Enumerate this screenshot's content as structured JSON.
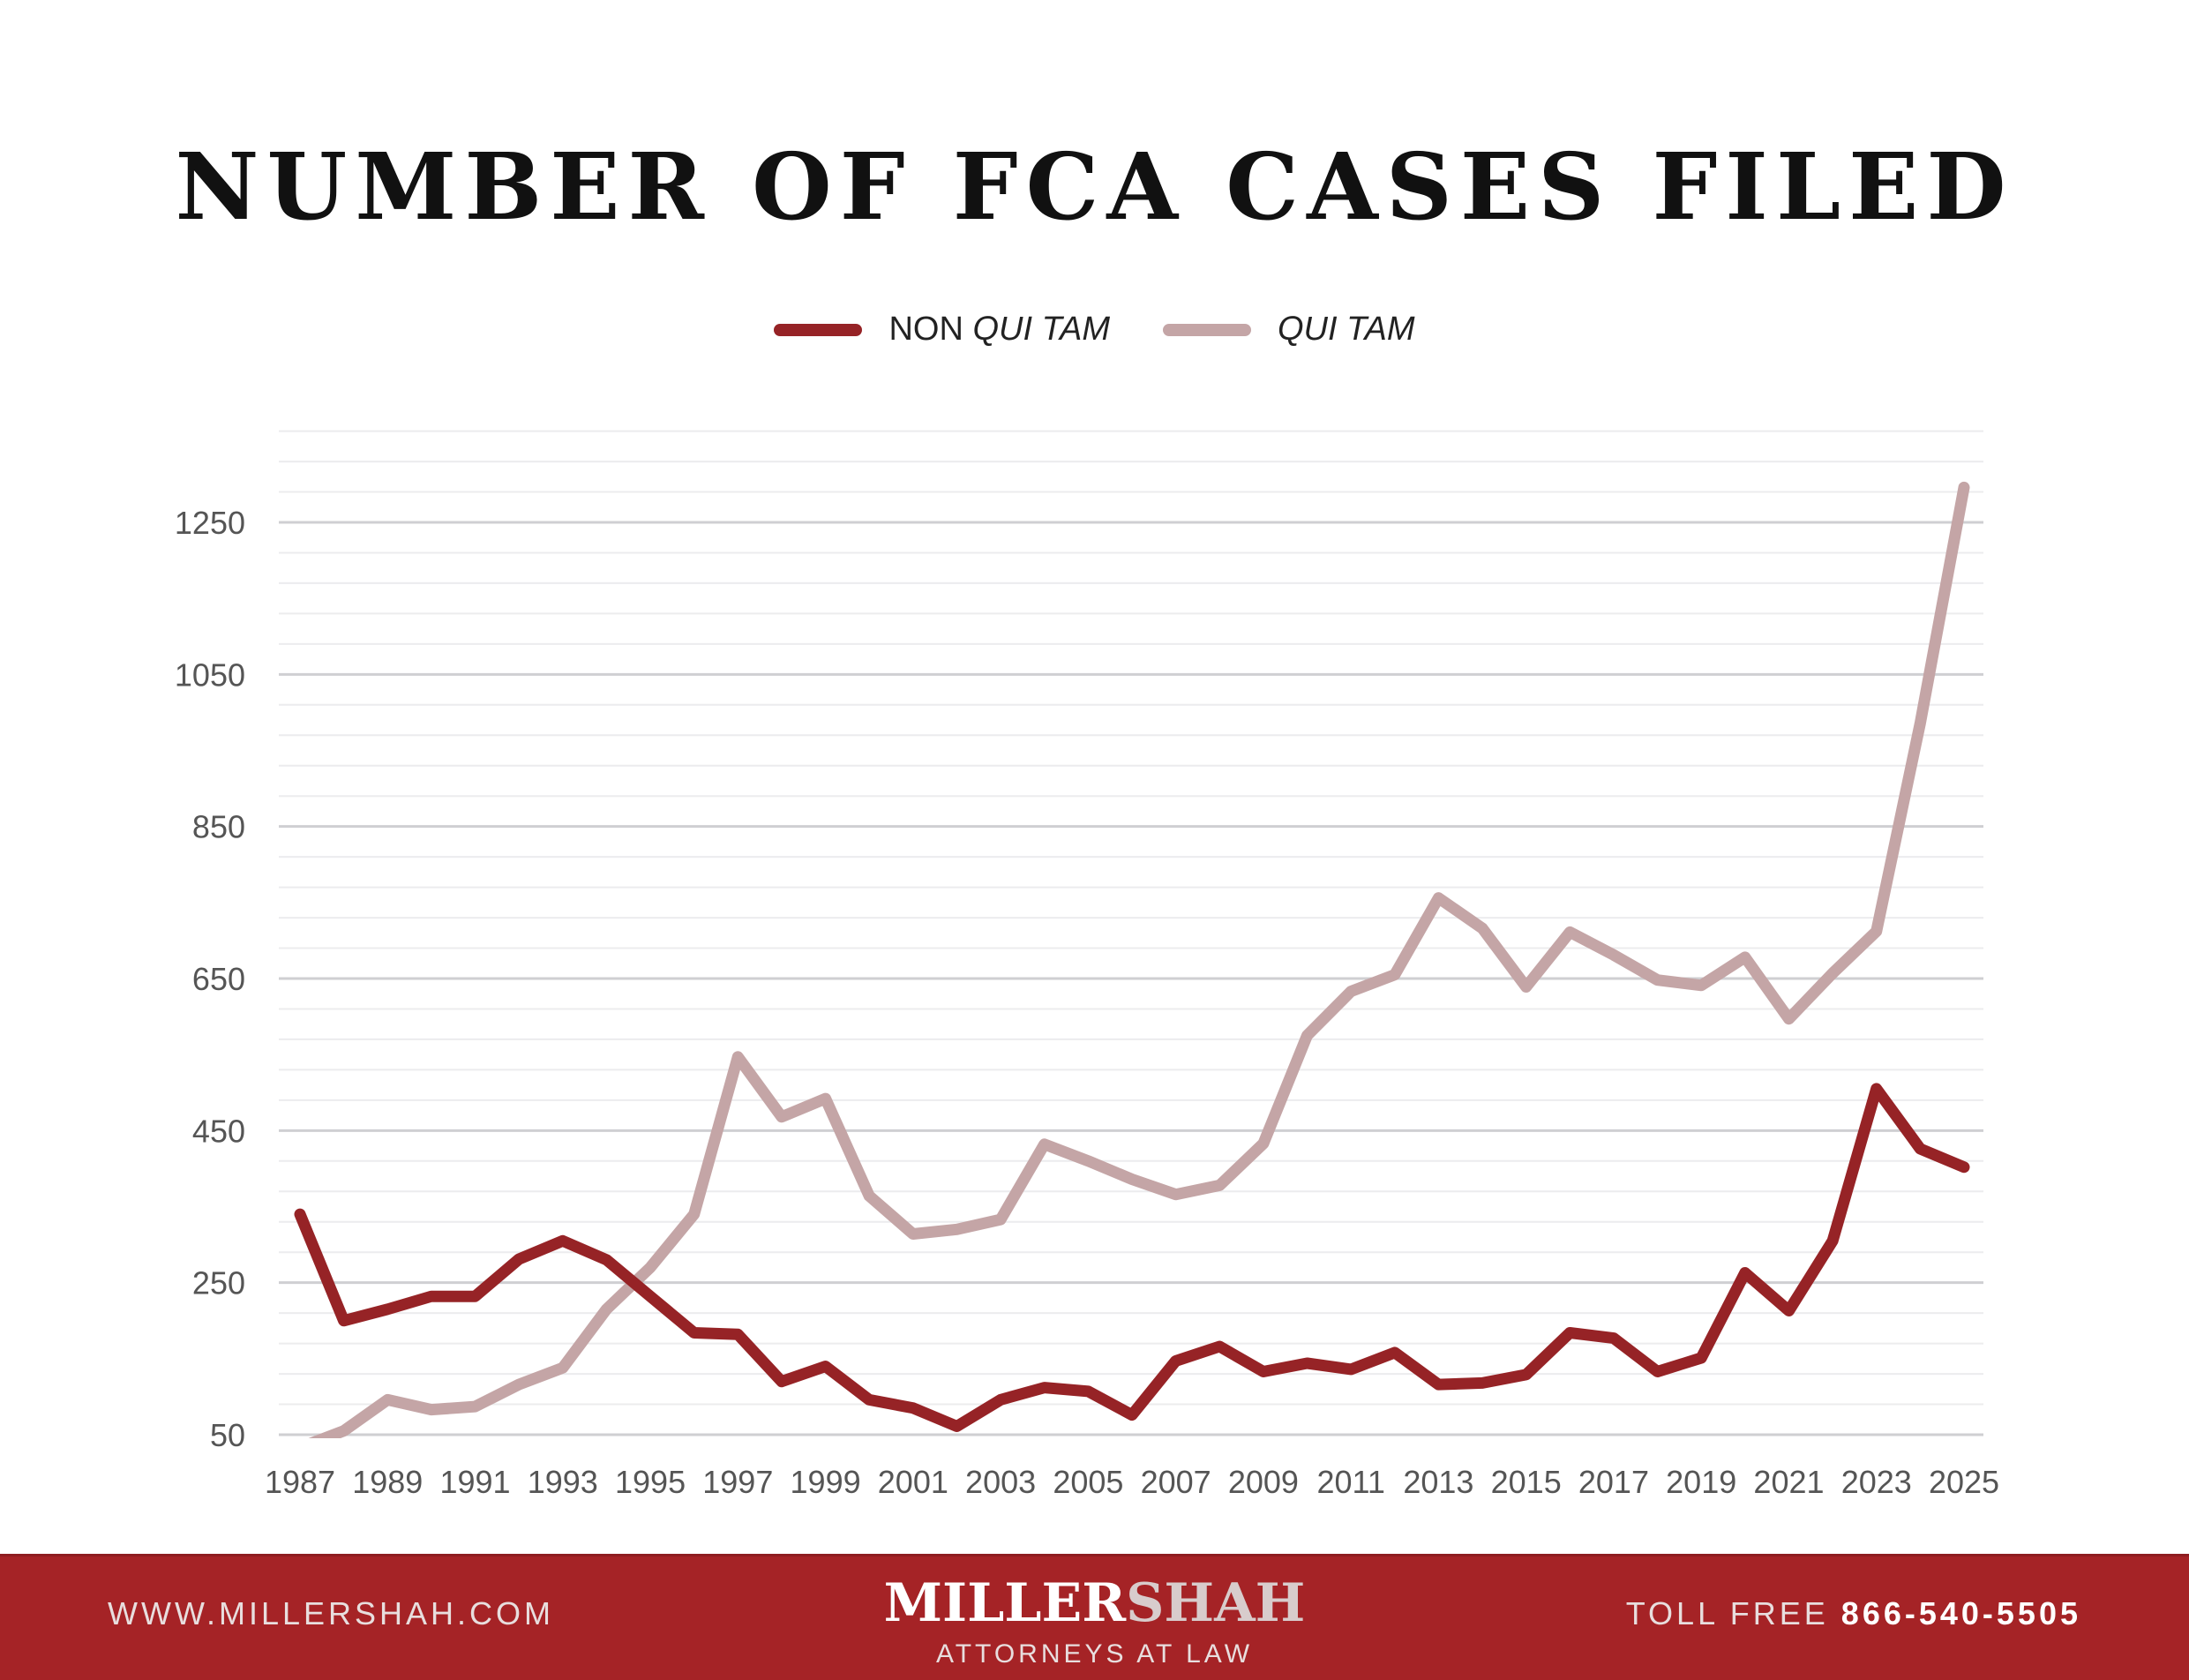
{
  "chart_data": {
    "type": "line",
    "title": "NUMBER OF FCA CASES FILED",
    "xlabel": "",
    "ylabel": "",
    "ylim": [
      50,
      1370
    ],
    "yticks": [
      50,
      250,
      450,
      650,
      850,
      1050,
      1250
    ],
    "grid": true,
    "legend_position": "top",
    "x": [
      1987,
      1988,
      1989,
      1990,
      1991,
      1992,
      1993,
      1994,
      1995,
      1996,
      1997,
      1998,
      1999,
      2000,
      2001,
      2002,
      2003,
      2004,
      2005,
      2006,
      2007,
      2008,
      2009,
      2010,
      2011,
      2012,
      2013,
      2014,
      2015,
      2016,
      2017,
      2018,
      2019,
      2020,
      2021,
      2022,
      2023,
      2024,
      2025
    ],
    "xtick_labels": [
      "1987",
      "1989",
      "1991",
      "1993",
      "1995",
      "1997",
      "1999",
      "2001",
      "2003",
      "2005",
      "2007",
      "2009",
      "2011",
      "2013",
      "2015",
      "2017",
      "2019",
      "2021",
      "2023",
      "2025"
    ],
    "series": [
      {
        "name_prefix": "NON",
        "name_italic": "QUI TAM",
        "color": "#962326",
        "values": [
          340,
          200,
          215,
          232,
          232,
          281,
          305,
          280,
          232,
          184,
          182,
          120,
          140,
          96,
          85,
          61,
          96,
          112,
          107,
          76,
          147,
          166,
          133,
          144,
          136,
          158,
          116,
          118,
          129,
          184,
          177,
          133,
          151,
          263,
          213,
          305,
          505,
          426,
          402
        ]
      },
      {
        "name_prefix": "",
        "name_italic": "QUI TAM",
        "color": "#c4a5a6",
        "values": [
          33,
          55,
          96,
          83,
          87,
          116,
          138,
          215,
          270,
          340,
          547,
          468,
          492,
          364,
          314,
          320,
          333,
          432,
          410,
          386,
          366,
          378,
          433,
          575,
          633,
          655,
          756,
          716,
          639,
          711,
          681,
          648,
          641,
          678,
          597,
          657,
          712,
          986,
          1296
        ]
      }
    ]
  },
  "footer": {
    "website": "WWW.MILLERSHAH.COM",
    "logo_part1": "MILLER",
    "logo_part2": "SHAH",
    "tagline": "ATTORNEYS AT LAW",
    "toll_label": "TOLL FREE",
    "phone": "866-540-5505",
    "bg_color": "#a52326"
  }
}
